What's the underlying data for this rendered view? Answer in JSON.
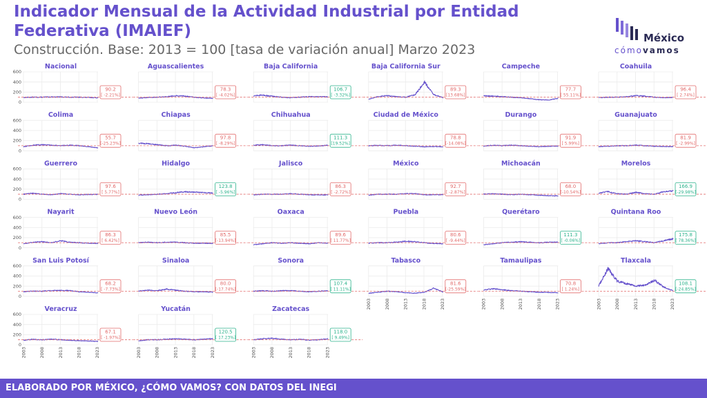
{
  "title": "Indicador Mensual de la Actividad Industrial por Entidad Federativa (IMAIEF)",
  "subtitle": "Construcción. Base: 2013 = 100 [tasa de variación anual] Marzo 2023",
  "logo": {
    "brand_top": "México",
    "brand_light": "cómo",
    "brand_bold": "vamos"
  },
  "footer": "ELABORADO POR MÉXICO, ¿CÓMO VAMOS? CON DATOS DEL INEGI",
  "colors": {
    "accent": "#6551cc",
    "line": "#6551cc",
    "negative": "#e26b6b",
    "positive": "#2db38c",
    "grid": "#ebebeb"
  },
  "chart_data": {
    "type": "line",
    "x_ticks": [
      "2003",
      "2008",
      "2013",
      "2018",
      "2023"
    ],
    "xlim": [
      2003,
      2023.2
    ],
    "y_ticks": [
      "600",
      "400",
      "200",
      "0"
    ],
    "ylim": [
      0,
      600
    ],
    "reference_value": 100,
    "panels": [
      {
        "name": "Nacional",
        "value": "90.2",
        "change": "[ -2.21%]",
        "positive": false,
        "profile": [
          95,
          100,
          100,
          105,
          105,
          100,
          100,
          95,
          90
        ]
      },
      {
        "name": "Aguascalientes",
        "value": "78.3",
        "change": "[ -4.02%]",
        "positive": false,
        "profile": [
          80,
          95,
          100,
          110,
          130,
          120,
          100,
          85,
          78
        ]
      },
      {
        "name": "Baja California",
        "value": "106.7",
        "change": "[ -3.32%]",
        "positive": true,
        "profile": [
          130,
          140,
          120,
          100,
          90,
          100,
          110,
          110,
          107
        ]
      },
      {
        "name": "Baja California Sur",
        "value": "89.3",
        "change": "[13.68%]",
        "positive": false,
        "profile": [
          60,
          110,
          130,
          110,
          100,
          150,
          400,
          150,
          89
        ]
      },
      {
        "name": "Campeche",
        "value": "77.7",
        "change": "[ 55.11%]",
        "positive": false,
        "profile": [
          130,
          120,
          110,
          100,
          90,
          70,
          50,
          45,
          78
        ]
      },
      {
        "name": "Coahuila",
        "value": "96.4",
        "change": "[ 2.74%]",
        "positive": false,
        "profile": [
          90,
          100,
          100,
          110,
          130,
          120,
          100,
          90,
          96
        ]
      },
      {
        "name": "Colima",
        "value": "55.7",
        "change": "[-25.23%]",
        "positive": false,
        "profile": [
          80,
          110,
          120,
          110,
          100,
          110,
          100,
          80,
          56
        ]
      },
      {
        "name": "Chiapas",
        "value": "97.8",
        "change": "[ -8.29%]",
        "positive": false,
        "profile": [
          150,
          140,
          120,
          100,
          110,
          90,
          60,
          80,
          98
        ]
      },
      {
        "name": "Chihuahua",
        "value": "111.3",
        "change": "[19.52%]",
        "positive": true,
        "profile": [
          110,
          120,
          100,
          100,
          110,
          100,
          90,
          95,
          111
        ]
      },
      {
        "name": "Ciudad de México",
        "value": "78.8",
        "change": "[-14.08%]",
        "positive": false,
        "profile": [
          100,
          105,
          100,
          110,
          100,
          90,
          80,
          85,
          79
        ]
      },
      {
        "name": "Durango",
        "value": "91.9",
        "change": "[ 5.99%]",
        "positive": false,
        "profile": [
          90,
          110,
          100,
          110,
          100,
          90,
          80,
          90,
          92
        ]
      },
      {
        "name": "Guanajuato",
        "value": "81.9",
        "change": "[ -2.99%]",
        "positive": false,
        "profile": [
          80,
          90,
          100,
          100,
          110,
          100,
          90,
          85,
          82
        ]
      },
      {
        "name": "Guerrero",
        "value": "97.6",
        "change": "[ 5.77%]",
        "positive": false,
        "profile": [
          100,
          120,
          100,
          90,
          110,
          100,
          90,
          95,
          98
        ]
      },
      {
        "name": "Hidalgo",
        "value": "123.8",
        "change": "[ -5.96%]",
        "positive": true,
        "profile": [
          80,
          90,
          100,
          110,
          130,
          150,
          140,
          130,
          124
        ]
      },
      {
        "name": "Jalisco",
        "value": "86.3",
        "change": "[ -2.72%]",
        "positive": false,
        "profile": [
          90,
          100,
          100,
          100,
          110,
          100,
          90,
          85,
          86
        ]
      },
      {
        "name": "México",
        "value": "92.7",
        "change": "[ -2.87%]",
        "positive": false,
        "profile": [
          80,
          100,
          100,
          100,
          110,
          110,
          90,
          90,
          93
        ]
      },
      {
        "name": "Michoacán",
        "value": "68.0",
        "change": "[-10.54%]",
        "positive": false,
        "profile": [
          100,
          110,
          100,
          90,
          100,
          90,
          80,
          70,
          68
        ]
      },
      {
        "name": "Morelos",
        "value": "166.9",
        "change": "[-29.98%]",
        "positive": true,
        "profile": [
          120,
          150,
          110,
          100,
          140,
          110,
          100,
          150,
          167
        ]
      },
      {
        "name": "Nayarit",
        "value": "86.3",
        "change": "[ 6.42%]",
        "positive": false,
        "profile": [
          80,
          110,
          120,
          100,
          140,
          110,
          100,
          90,
          86
        ]
      },
      {
        "name": "Nuevo León",
        "value": "85.5",
        "change": "[-13.94%]",
        "positive": false,
        "profile": [
          100,
          110,
          100,
          110,
          110,
          100,
          90,
          90,
          86
        ]
      },
      {
        "name": "Oaxaca",
        "value": "89.6",
        "change": "[ 11.77%]",
        "positive": false,
        "profile": [
          60,
          80,
          100,
          90,
          100,
          90,
          80,
          100,
          90
        ]
      },
      {
        "name": "Puebla",
        "value": "80.6",
        "change": "[ -9.44%]",
        "positive": false,
        "profile": [
          90,
          100,
          100,
          110,
          130,
          120,
          100,
          85,
          81
        ]
      },
      {
        "name": "Querétaro",
        "value": "111.3",
        "change": "[ -0.06%]",
        "positive": true,
        "profile": [
          60,
          80,
          100,
          110,
          120,
          110,
          100,
          110,
          111
        ]
      },
      {
        "name": "Quintana Roo",
        "value": "175.8",
        "change": "[ 78.36%]",
        "positive": true,
        "profile": [
          80,
          100,
          100,
          120,
          140,
          120,
          100,
          140,
          176
        ]
      },
      {
        "name": "San Luis Potosí",
        "value": "68.2",
        "change": "[ -7.73%]",
        "positive": false,
        "profile": [
          90,
          100,
          100,
          110,
          120,
          110,
          90,
          80,
          68
        ]
      },
      {
        "name": "Sinaloa",
        "value": "80.0",
        "change": "[-17.74%]",
        "positive": false,
        "profile": [
          100,
          120,
          110,
          140,
          120,
          100,
          90,
          90,
          80
        ]
      },
      {
        "name": "Sonora",
        "value": "107.4",
        "change": "[ 11.11%]",
        "positive": true,
        "profile": [
          100,
          110,
          100,
          110,
          110,
          100,
          90,
          100,
          107
        ]
      },
      {
        "name": "Tabasco",
        "value": "81.6",
        "change": "[-25.59%]",
        "positive": false,
        "profile": [
          60,
          80,
          100,
          90,
          70,
          60,
          80,
          160,
          82
        ]
      },
      {
        "name": "Tamaulipas",
        "value": "70.8",
        "change": "[ 1.24%]",
        "positive": false,
        "profile": [
          120,
          150,
          130,
          110,
          100,
          90,
          80,
          75,
          71
        ]
      },
      {
        "name": "Tlaxcala",
        "value": "108.1",
        "change": "[-24.85%]",
        "positive": true,
        "profile": [
          200,
          550,
          300,
          250,
          200,
          220,
          320,
          180,
          108
        ]
      },
      {
        "name": "Veracruz",
        "value": "67.1",
        "change": "[ -1.97%]",
        "positive": false,
        "profile": [
          90,
          110,
          100,
          110,
          100,
          90,
          80,
          75,
          67
        ]
      },
      {
        "name": "Yucatán",
        "value": "120.5",
        "change": "[ 17.23%]",
        "positive": true,
        "profile": [
          80,
          100,
          100,
          110,
          120,
          110,
          100,
          110,
          121
        ]
      },
      {
        "name": "Zacatecas",
        "value": "118.0",
        "change": "[ 9.49%]",
        "positive": true,
        "profile": [
          100,
          120,
          130,
          110,
          100,
          110,
          90,
          100,
          118
        ]
      }
    ]
  }
}
